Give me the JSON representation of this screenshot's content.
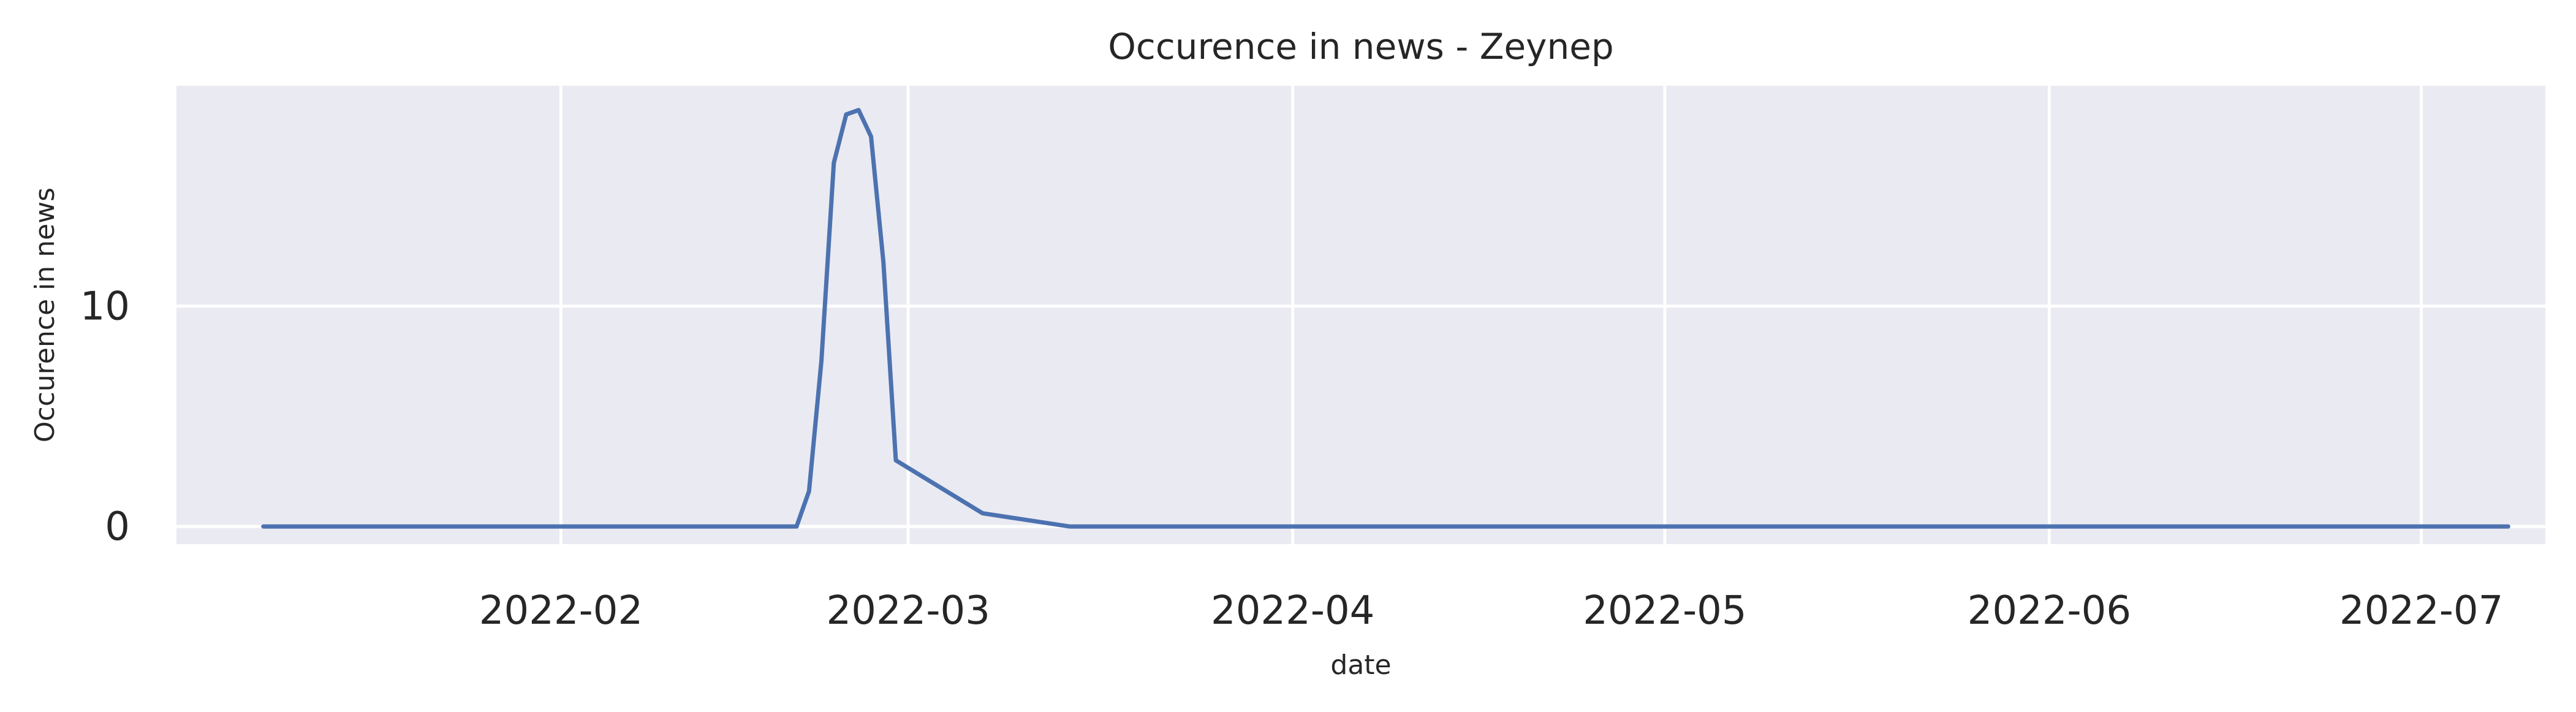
{
  "chart_data": {
    "type": "line",
    "title": "Occurence in news - Zeynep",
    "xlabel": "date",
    "ylabel": "Occurence in news",
    "x_ticks": [
      "2022-02",
      "2022-03",
      "2022-04",
      "2022-05",
      "2022-06",
      "2022-07"
    ],
    "y_ticks": [
      "0",
      "10"
    ],
    "ylim": [
      -0.8,
      20
    ],
    "xlim": [
      "2022-01-01",
      "2022-07-11"
    ],
    "grid": true,
    "colors": {
      "background": "#eaeaf2",
      "grid": "#ffffff",
      "line": "#4c72b0"
    },
    "series": [
      {
        "x": [
          "2022-01-08",
          "2022-01-09",
          "2022-01-10",
          "2022-01-11",
          "2022-01-12",
          "2022-01-13",
          "2022-01-14",
          "2022-01-15",
          "2022-01-16",
          "2022-01-17",
          "2022-01-18",
          "2022-01-19",
          "2022-01-20",
          "2022-01-21",
          "2022-01-22",
          "2022-01-23",
          "2022-01-24",
          "2022-01-25",
          "2022-01-26",
          "2022-01-27",
          "2022-01-28",
          "2022-01-29",
          "2022-01-30",
          "2022-01-31",
          "2022-02-01",
          "2022-02-02",
          "2022-02-03",
          "2022-02-04",
          "2022-02-05",
          "2022-02-06",
          "2022-02-07",
          "2022-02-08",
          "2022-02-09",
          "2022-02-10",
          "2022-02-11",
          "2022-02-12",
          "2022-02-13",
          "2022-02-14",
          "2022-02-15",
          "2022-02-16",
          "2022-02-17",
          "2022-02-18",
          "2022-02-19",
          "2022-02-20",
          "2022-02-21",
          "2022-02-22",
          "2022-02-23",
          "2022-02-24",
          "2022-02-25",
          "2022-02-26",
          "2022-02-27",
          "2022-02-28",
          "2022-03-07",
          "2022-03-14",
          "2022-03-21",
          "2022-03-28",
          "2022-04-04",
          "2022-04-11",
          "2022-04-18",
          "2022-04-25",
          "2022-05-02",
          "2022-05-09",
          "2022-05-16",
          "2022-05-23",
          "2022-05-30",
          "2022-06-06",
          "2022-06-13",
          "2022-06-20",
          "2022-06-27",
          "2022-07-04",
          "2022-07-08"
        ],
        "values": [
          0,
          0,
          0,
          0,
          0,
          0,
          0,
          0,
          0,
          0,
          0,
          0,
          0,
          0,
          0,
          0,
          0,
          0,
          0,
          0,
          0,
          0,
          0,
          0,
          0,
          0,
          0,
          0,
          0,
          0,
          0,
          0,
          0,
          0,
          0,
          0,
          0,
          0,
          0,
          0,
          0,
          0,
          0,
          0,
          1.6,
          7.5,
          16.5,
          18.7,
          18.9,
          17.7,
          12,
          3,
          0.6,
          0,
          0,
          0,
          0,
          0,
          0,
          0,
          0,
          0,
          0,
          0,
          0,
          0,
          0,
          0,
          0,
          0,
          0
        ]
      }
    ]
  }
}
